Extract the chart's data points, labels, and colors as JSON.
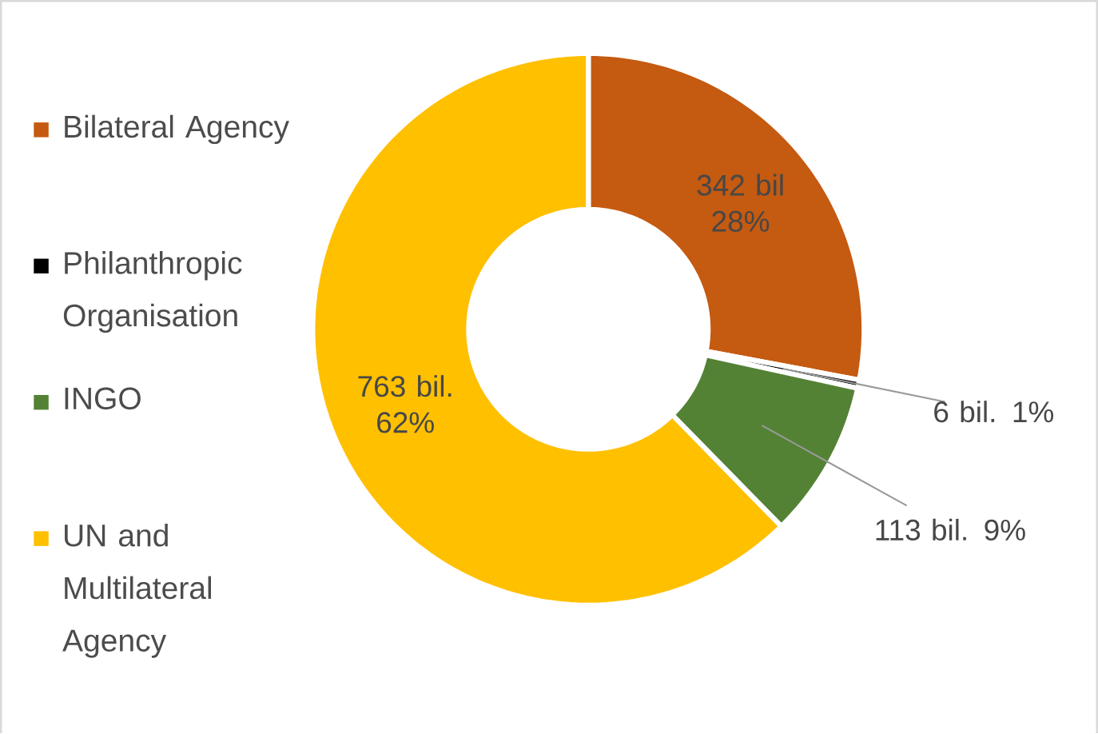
{
  "chart_data": {
    "type": "donut",
    "categories": [
      "Bilateral Agency",
      "Philanthropic Organisation",
      "INGO",
      "UN and Multilateral Agency"
    ],
    "values": [
      342,
      6,
      113,
      763
    ],
    "colors": [
      "#c55a11",
      "#000000",
      "#548235",
      "#ffc000"
    ],
    "value_labels": [
      "342 bil 28%",
      "6 bil. 1%",
      "113 bil. 9%",
      "763 bil. 62%"
    ],
    "legend": "left"
  }
}
